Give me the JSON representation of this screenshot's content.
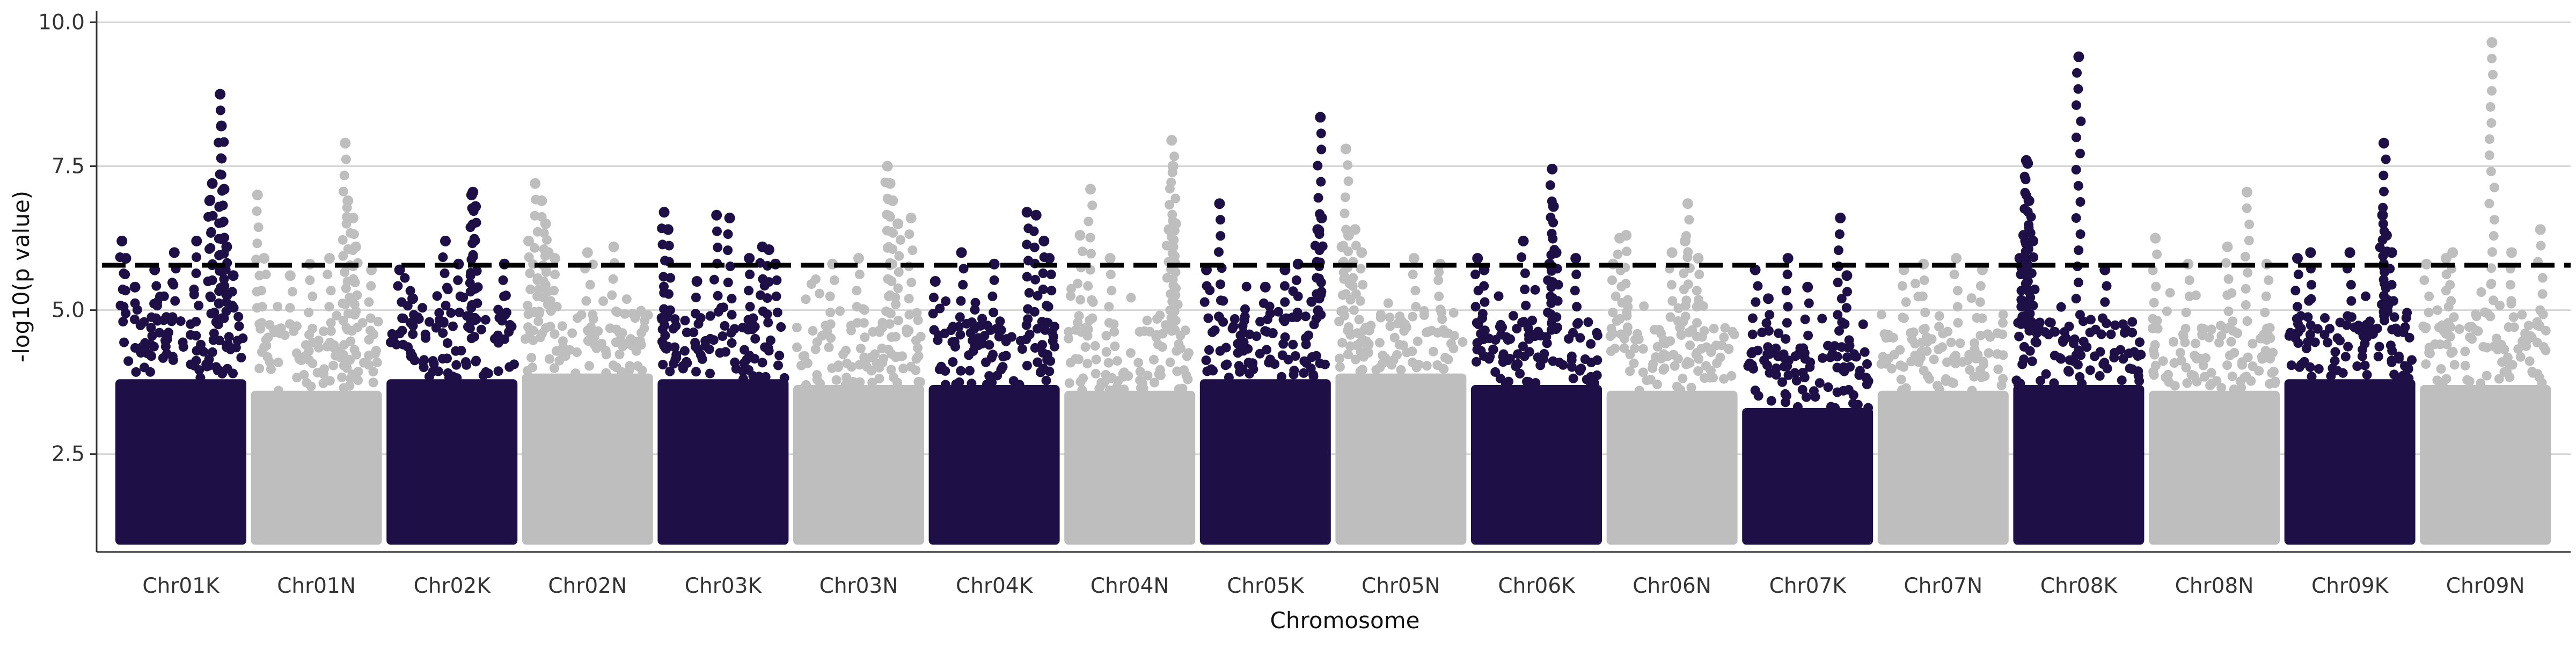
{
  "chart_data": {
    "type": "scatter",
    "subtype": "manhattan",
    "title": "",
    "xlabel": "Chromosome",
    "ylabel": "-log10(p value)",
    "ylim": [
      0.8,
      10.2
    ],
    "yticks": [
      2.5,
      5.0,
      7.5,
      10.0
    ],
    "ytick_labels": [
      "2.5",
      "5.0",
      "7.5",
      "10.0"
    ],
    "threshold": 5.78,
    "threshold_style": "dashed",
    "grid": "horizontal major lines",
    "legend": "none",
    "colors": {
      "odd": "#1e1046",
      "even": "#bebebe",
      "threshold": "#000000",
      "grid": "#d6d6d6"
    },
    "categories": [
      "Chr01K",
      "Chr01N",
      "Chr02K",
      "Chr02N",
      "Chr03K",
      "Chr03N",
      "Chr04K",
      "Chr04N",
      "Chr05K",
      "Chr05N",
      "Chr06K",
      "Chr06N",
      "Chr07K",
      "Chr07N",
      "Chr08K",
      "Chr08N",
      "Chr09K",
      "Chr09N"
    ],
    "series": [
      {
        "chromosome": "Chr01K",
        "bulk_max": 3.8,
        "peaks": [
          [
            0.05,
            6.2
          ],
          [
            0.08,
            5.9
          ],
          [
            0.15,
            5.4
          ],
          [
            0.3,
            5.7
          ],
          [
            0.45,
            6.0
          ],
          [
            0.62,
            6.2
          ],
          [
            0.72,
            6.9
          ],
          [
            0.74,
            7.2
          ],
          [
            0.8,
            8.75
          ],
          [
            0.81,
            8.2
          ],
          [
            0.83,
            7.1
          ],
          [
            0.85,
            6.1
          ],
          [
            0.9,
            5.6
          ]
        ]
      },
      {
        "chromosome": "Chr01N",
        "bulk_max": 3.6,
        "peaks": [
          [
            0.05,
            7.0
          ],
          [
            0.1,
            5.9
          ],
          [
            0.3,
            5.6
          ],
          [
            0.45,
            5.8
          ],
          [
            0.6,
            5.9
          ],
          [
            0.72,
            7.9
          ],
          [
            0.74,
            6.9
          ],
          [
            0.78,
            6.6
          ],
          [
            0.8,
            6.1
          ],
          [
            0.92,
            5.7
          ]
        ]
      },
      {
        "chromosome": "Chr02K",
        "bulk_max": 3.8,
        "peaks": [
          [
            0.1,
            5.7
          ],
          [
            0.2,
            5.2
          ],
          [
            0.45,
            6.2
          ],
          [
            0.55,
            5.8
          ],
          [
            0.65,
            7.0
          ],
          [
            0.66,
            7.05
          ],
          [
            0.68,
            6.8
          ],
          [
            0.9,
            5.8
          ]
        ]
      },
      {
        "chromosome": "Chr02N",
        "bulk_max": 3.9,
        "peaks": [
          [
            0.05,
            6.2
          ],
          [
            0.1,
            7.2
          ],
          [
            0.15,
            6.9
          ],
          [
            0.18,
            6.5
          ],
          [
            0.2,
            6.0
          ],
          [
            0.25,
            5.9
          ],
          [
            0.5,
            6.0
          ],
          [
            0.7,
            6.1
          ]
        ]
      },
      {
        "chromosome": "Chr03K",
        "bulk_max": 3.8,
        "peaks": [
          [
            0.05,
            6.7
          ],
          [
            0.08,
            6.4
          ],
          [
            0.3,
            5.5
          ],
          [
            0.45,
            6.65
          ],
          [
            0.55,
            6.6
          ],
          [
            0.7,
            5.9
          ],
          [
            0.8,
            6.1
          ],
          [
            0.85,
            6.05
          ],
          [
            0.9,
            5.8
          ]
        ]
      },
      {
        "chromosome": "Chr03N",
        "bulk_max": 3.7,
        "peaks": [
          [
            0.3,
            5.8
          ],
          [
            0.5,
            5.9
          ],
          [
            0.72,
            7.5
          ],
          [
            0.74,
            7.2
          ],
          [
            0.76,
            6.9
          ],
          [
            0.8,
            6.5
          ],
          [
            0.9,
            6.6
          ]
        ]
      },
      {
        "chromosome": "Chr04K",
        "bulk_max": 3.7,
        "peaks": [
          [
            0.05,
            5.5
          ],
          [
            0.25,
            6.0
          ],
          [
            0.5,
            5.8
          ],
          [
            0.75,
            6.7
          ],
          [
            0.82,
            6.65
          ],
          [
            0.88,
            6.2
          ],
          [
            0.92,
            5.9
          ]
        ]
      },
      {
        "chromosome": "Chr04N",
        "bulk_max": 3.6,
        "peaks": [
          [
            0.12,
            6.3
          ],
          [
            0.2,
            7.1
          ],
          [
            0.35,
            5.9
          ],
          [
            0.8,
            6.4
          ],
          [
            0.82,
            7.95
          ],
          [
            0.83,
            7.5
          ],
          [
            0.85,
            6.5
          ]
        ]
      },
      {
        "chromosome": "Chr05K",
        "bulk_max": 3.8,
        "peaks": [
          [
            0.05,
            5.7
          ],
          [
            0.15,
            6.85
          ],
          [
            0.5,
            5.4
          ],
          [
            0.65,
            5.7
          ],
          [
            0.75,
            5.8
          ],
          [
            0.9,
            6.4
          ],
          [
            0.92,
            8.35
          ],
          [
            0.93,
            6.6
          ]
        ]
      },
      {
        "chromosome": "Chr05N",
        "bulk_max": 3.9,
        "peaks": [
          [
            0.05,
            6.1
          ],
          [
            0.08,
            7.8
          ],
          [
            0.1,
            6.3
          ],
          [
            0.15,
            6.4
          ],
          [
            0.2,
            6.0
          ],
          [
            0.6,
            5.9
          ],
          [
            0.8,
            5.8
          ]
        ]
      },
      {
        "chromosome": "Chr06K",
        "bulk_max": 3.7,
        "peaks": [
          [
            0.05,
            5.9
          ],
          [
            0.1,
            5.7
          ],
          [
            0.4,
            6.2
          ],
          [
            0.6,
            5.8
          ],
          [
            0.62,
            7.45
          ],
          [
            0.63,
            6.8
          ],
          [
            0.65,
            6.0
          ],
          [
            0.8,
            5.9
          ]
        ]
      },
      {
        "chromosome": "Chr06N",
        "bulk_max": 3.6,
        "peaks": [
          [
            0.05,
            5.8
          ],
          [
            0.1,
            6.25
          ],
          [
            0.15,
            6.3
          ],
          [
            0.5,
            6.0
          ],
          [
            0.6,
            6.2
          ],
          [
            0.62,
            6.85
          ],
          [
            0.7,
            5.9
          ]
        ]
      },
      {
        "chromosome": "Chr07K",
        "bulk_max": 3.3,
        "peaks": [
          [
            0.1,
            5.7
          ],
          [
            0.2,
            5.2
          ],
          [
            0.35,
            5.9
          ],
          [
            0.5,
            5.4
          ],
          [
            0.75,
            6.6
          ],
          [
            0.8,
            5.6
          ]
        ]
      },
      {
        "chromosome": "Chr07N",
        "bulk_max": 3.6,
        "peaks": [
          [
            0.2,
            5.7
          ],
          [
            0.35,
            5.8
          ],
          [
            0.6,
            5.9
          ],
          [
            0.8,
            5.7
          ]
        ]
      },
      {
        "chromosome": "Chr08K",
        "bulk_max": 3.7,
        "peaks": [
          [
            0.05,
            5.9
          ],
          [
            0.08,
            6.3
          ],
          [
            0.1,
            7.6
          ],
          [
            0.11,
            7.55
          ],
          [
            0.12,
            6.9
          ],
          [
            0.15,
            6.2
          ],
          [
            0.5,
            9.4
          ],
          [
            0.7,
            5.7
          ]
        ]
      },
      {
        "chromosome": "Chr08N",
        "bulk_max": 3.6,
        "peaks": [
          [
            0.05,
            6.25
          ],
          [
            0.3,
            5.8
          ],
          [
            0.6,
            6.1
          ],
          [
            0.75,
            7.05
          ],
          [
            0.9,
            5.8
          ]
        ]
      },
      {
        "chromosome": "Chr09K",
        "bulk_max": 3.8,
        "peaks": [
          [
            0.1,
            5.9
          ],
          [
            0.2,
            6.0
          ],
          [
            0.5,
            6.0
          ],
          [
            0.75,
            6.65
          ],
          [
            0.76,
            7.9
          ],
          [
            0.78,
            6.3
          ],
          [
            0.82,
            6.0
          ]
        ]
      },
      {
        "chromosome": "Chr09N",
        "bulk_max": 3.7,
        "peaks": [
          [
            0.05,
            5.8
          ],
          [
            0.2,
            5.9
          ],
          [
            0.25,
            6.0
          ],
          [
            0.55,
            9.65
          ],
          [
            0.7,
            6.0
          ],
          [
            0.92,
            6.4
          ]
        ]
      }
    ]
  }
}
